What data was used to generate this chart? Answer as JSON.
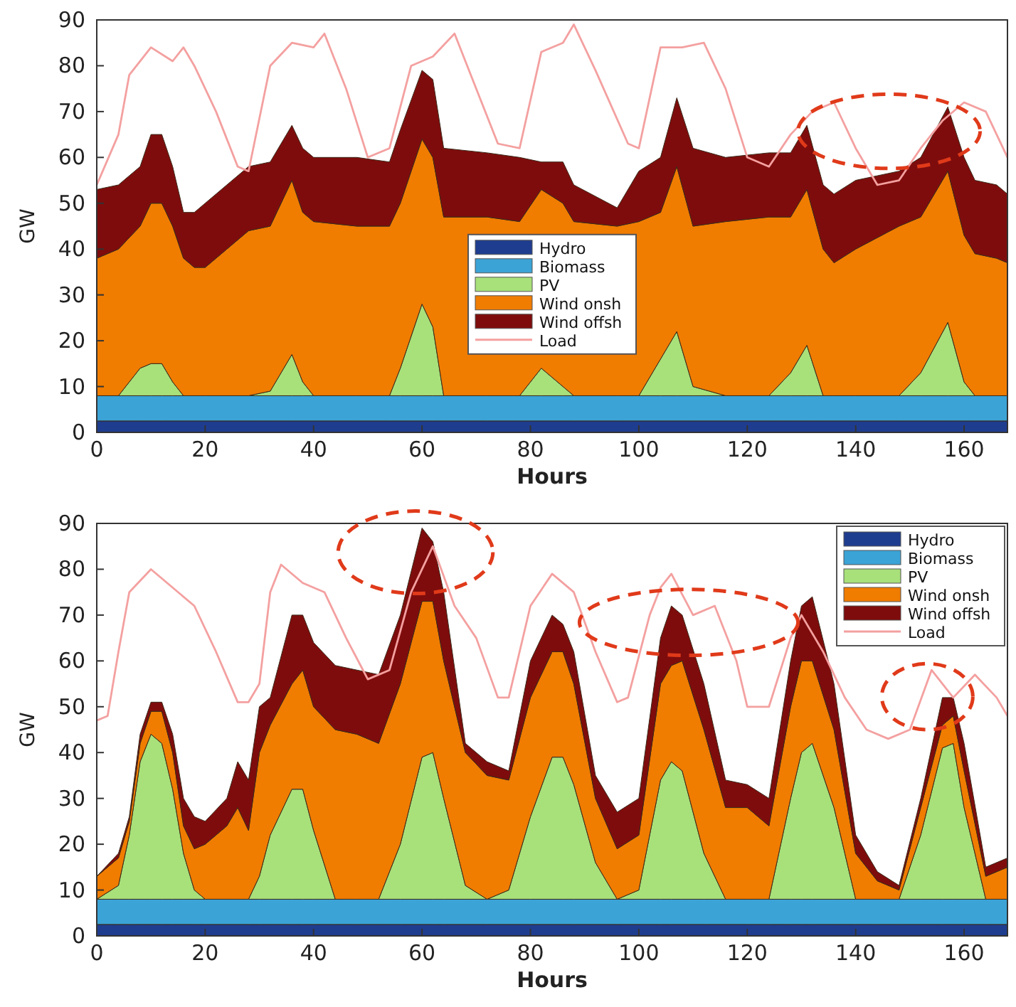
{
  "chart_data": [
    {
      "type": "area",
      "stacked": true,
      "xlabel": "Hours",
      "ylabel": "GW",
      "xlim": [
        0,
        168
      ],
      "ylim": [
        0,
        90
      ],
      "xticks": [
        0,
        20,
        40,
        60,
        80,
        100,
        120,
        140,
        160
      ],
      "yticks": [
        0,
        10,
        20,
        30,
        40,
        50,
        60,
        70,
        80,
        90
      ],
      "grid": false,
      "legend": "bottom",
      "x": [
        0,
        4,
        8,
        10,
        12,
        14,
        16,
        18,
        20,
        24,
        28,
        32,
        36,
        38,
        40,
        48,
        54,
        56,
        60,
        62,
        64,
        72,
        78,
        82,
        86,
        88,
        96,
        100,
        104,
        107,
        110,
        116,
        124,
        128,
        131,
        134,
        136,
        140,
        148,
        152,
        157,
        160,
        162,
        166,
        168
      ],
      "series": [
        {
          "name": "Hydro",
          "color": "#1f3d8f",
          "values": [
            2.5,
            2.5,
            2.5,
            2.5,
            2.5,
            2.5,
            2.5,
            2.5,
            2.5,
            2.5,
            2.5,
            2.5,
            2.5,
            2.5,
            2.5,
            2.5,
            2.5,
            2.5,
            2.5,
            2.5,
            2.5,
            2.5,
            2.5,
            2.5,
            2.5,
            2.5,
            2.5,
            2.5,
            2.5,
            2.5,
            2.5,
            2.5,
            2.5,
            2.5,
            2.5,
            2.5,
            2.5,
            2.5,
            2.5,
            2.5,
            2.5,
            2.5,
            2.5,
            2.5,
            2.5
          ]
        },
        {
          "name": "Biomass",
          "color": "#3ba3d6",
          "values": [
            5.5,
            5.5,
            5.5,
            5.5,
            5.5,
            5.5,
            5.5,
            5.5,
            5.5,
            5.5,
            5.5,
            5.5,
            5.5,
            5.5,
            5.5,
            5.5,
            5.5,
            5.5,
            5.5,
            5.5,
            5.5,
            5.5,
            5.5,
            5.5,
            5.5,
            5.5,
            5.5,
            5.5,
            5.5,
            5.5,
            5.5,
            5.5,
            5.5,
            5.5,
            5.5,
            5.5,
            5.5,
            5.5,
            5.5,
            5.5,
            5.5,
            5.5,
            5.5,
            5.5,
            5.5
          ]
        },
        {
          "name": "PV",
          "color": "#a8e07a",
          "values": [
            0,
            0,
            6,
            7,
            7,
            3,
            0,
            0,
            0,
            0,
            0,
            1,
            9,
            3,
            0,
            0,
            0,
            6,
            20,
            15,
            0,
            0,
            0,
            6,
            2,
            0,
            0,
            0,
            8,
            14,
            2,
            0,
            0,
            5,
            11,
            0,
            0,
            0,
            0,
            5,
            16,
            3,
            0,
            0,
            0
          ]
        },
        {
          "name": "Wind onsh",
          "color": "#f07c00",
          "values": [
            30,
            32,
            31,
            35,
            35,
            34,
            30,
            28,
            28,
            32,
            36,
            36,
            38,
            37,
            38,
            37,
            37,
            36,
            36,
            37,
            39,
            39,
            38,
            39,
            40,
            38,
            37,
            38,
            32,
            36,
            35,
            38,
            39,
            34,
            34,
            32,
            29,
            32,
            37,
            34,
            33,
            32,
            31,
            30,
            29
          ]
        },
        {
          "name": "Wind offsh",
          "color": "#7f0c0c",
          "values": [
            15,
            14,
            13,
            15,
            15,
            13,
            10,
            12,
            14,
            14,
            14,
            14,
            12,
            14,
            14,
            15,
            14,
            16,
            15,
            17,
            15,
            14,
            14,
            6,
            9,
            8,
            4,
            11,
            12,
            15,
            17,
            14,
            14,
            14,
            14,
            14,
            15,
            15,
            12,
            13,
            14,
            17,
            16,
            16,
            15
          ]
        },
        {
          "name": "Load",
          "type": "line",
          "color": "#f4a0a0",
          "x": [
            0,
            4,
            6,
            10,
            14,
            16,
            18,
            22,
            26,
            28,
            32,
            36,
            40,
            42,
            46,
            50,
            54,
            58,
            62,
            66,
            70,
            74,
            78,
            82,
            86,
            88,
            92,
            98,
            100,
            104,
            108,
            112,
            116,
            120,
            124,
            128,
            132,
            136,
            140,
            144,
            148,
            152,
            156,
            160,
            164,
            168
          ],
          "values": [
            54,
            65,
            78,
            84,
            81,
            84,
            80,
            70,
            58,
            57,
            80,
            85,
            84,
            87,
            75,
            60,
            62,
            80,
            82,
            87,
            75,
            63,
            62,
            83,
            85,
            89,
            79,
            63,
            62,
            84,
            84,
            85,
            75,
            60,
            58,
            65,
            70,
            72,
            62,
            54,
            55,
            62,
            68,
            72,
            70,
            60
          ]
        }
      ]
    },
    {
      "type": "area",
      "stacked": true,
      "xlabel": "Hours",
      "ylabel": "GW",
      "xlim": [
        0,
        168
      ],
      "ylim": [
        0,
        90
      ],
      "xticks": [
        0,
        20,
        40,
        60,
        80,
        100,
        120,
        140,
        160
      ],
      "yticks": [
        0,
        10,
        20,
        30,
        40,
        50,
        60,
        70,
        80,
        90
      ],
      "grid": false,
      "legend": "top right",
      "x": [
        0,
        4,
        6,
        8,
        10,
        12,
        14,
        16,
        18,
        20,
        24,
        26,
        28,
        30,
        32,
        36,
        38,
        40,
        44,
        48,
        52,
        56,
        60,
        62,
        64,
        68,
        72,
        76,
        80,
        84,
        86,
        88,
        92,
        96,
        100,
        104,
        106,
        108,
        112,
        116,
        120,
        124,
        128,
        130,
        132,
        136,
        140,
        144,
        148,
        152,
        156,
        158,
        160,
        164,
        168
      ],
      "series": [
        {
          "name": "Hydro",
          "color": "#1f3d8f",
          "values": [
            2.5,
            2.5,
            2.5,
            2.5,
            2.5,
            2.5,
            2.5,
            2.5,
            2.5,
            2.5,
            2.5,
            2.5,
            2.5,
            2.5,
            2.5,
            2.5,
            2.5,
            2.5,
            2.5,
            2.5,
            2.5,
            2.5,
            2.5,
            2.5,
            2.5,
            2.5,
            2.5,
            2.5,
            2.5,
            2.5,
            2.5,
            2.5,
            2.5,
            2.5,
            2.5,
            2.5,
            2.5,
            2.5,
            2.5,
            2.5,
            2.5,
            2.5,
            2.5,
            2.5,
            2.5,
            2.5,
            2.5,
            2.5,
            2.5,
            2.5,
            2.5,
            2.5,
            2.5,
            2.5,
            2.5
          ]
        },
        {
          "name": "Biomass",
          "color": "#3ba3d6",
          "values": [
            5.5,
            5.5,
            5.5,
            5.5,
            5.5,
            5.5,
            5.5,
            5.5,
            5.5,
            5.5,
            5.5,
            5.5,
            5.5,
            5.5,
            5.5,
            5.5,
            5.5,
            5.5,
            5.5,
            5.5,
            5.5,
            5.5,
            5.5,
            5.5,
            5.5,
            5.5,
            5.5,
            5.5,
            5.5,
            5.5,
            5.5,
            5.5,
            5.5,
            5.5,
            5.5,
            5.5,
            5.5,
            5.5,
            5.5,
            5.5,
            5.5,
            5.5,
            5.5,
            5.5,
            5.5,
            5.5,
            5.5,
            5.5,
            5.5,
            5.5,
            5.5,
            5.5,
            5.5,
            5.5,
            5.5
          ]
        },
        {
          "name": "PV",
          "color": "#a8e07a",
          "values": [
            0,
            3,
            14,
            30,
            36,
            34,
            24,
            10,
            2,
            0,
            0,
            0,
            0,
            5,
            14,
            24,
            24,
            15,
            0,
            0,
            0,
            12,
            31,
            32,
            22,
            3,
            0,
            2,
            18,
            31,
            31,
            25,
            8,
            0,
            2,
            26,
            30,
            28,
            10,
            0,
            0,
            0,
            22,
            32,
            34,
            20,
            0,
            0,
            0,
            14,
            33,
            34,
            20,
            0,
            0
          ]
        },
        {
          "name": "Wind onsh",
          "color": "#f07c00",
          "values": [
            5,
            6,
            3,
            4,
            5,
            7,
            8,
            6,
            9,
            12,
            16,
            20,
            15,
            27,
            24,
            23,
            26,
            27,
            37,
            36,
            34,
            35,
            34,
            33,
            30,
            29,
            27,
            24,
            26,
            23,
            23,
            22,
            14,
            11,
            12,
            21,
            21,
            24,
            27,
            20,
            20,
            16,
            20,
            20,
            18,
            17,
            10,
            4,
            2,
            6,
            5,
            6,
            8,
            5,
            7
          ]
        },
        {
          "name": "Wind offsh",
          "color": "#7f0c0c",
          "values": [
            0,
            1,
            1,
            2,
            2,
            2,
            4,
            6,
            7,
            5,
            6,
            10,
            11,
            10,
            6,
            15,
            12,
            14,
            14,
            14,
            15,
            15,
            16,
            13,
            15,
            2,
            3,
            2,
            8,
            8,
            6,
            7,
            5,
            8,
            8,
            10,
            13,
            10,
            10,
            6,
            5,
            6,
            10,
            12,
            14,
            10,
            4,
            2,
            1,
            2,
            6,
            4,
            6,
            2,
            2
          ]
        },
        {
          "name": "Load",
          "type": "line",
          "color": "#f4a0a0",
          "x": [
            0,
            2,
            4,
            6,
            10,
            14,
            18,
            22,
            26,
            28,
            30,
            32,
            34,
            38,
            42,
            46,
            50,
            54,
            58,
            62,
            66,
            70,
            74,
            76,
            80,
            84,
            88,
            92,
            96,
            98,
            102,
            104,
            106,
            110,
            114,
            118,
            120,
            124,
            128,
            130,
            134,
            138,
            142,
            146,
            150,
            154,
            158,
            162,
            166,
            168
          ],
          "values": [
            47,
            48,
            62,
            75,
            80,
            76,
            72,
            62,
            51,
            51,
            55,
            75,
            81,
            77,
            75,
            65,
            56,
            58,
            75,
            85,
            72,
            65,
            52,
            52,
            72,
            79,
            75,
            62,
            51,
            52,
            70,
            76,
            79,
            70,
            72,
            60,
            50,
            50,
            65,
            70,
            62,
            52,
            45,
            43,
            45,
            58,
            52,
            57,
            52,
            48
          ]
        }
      ]
    }
  ]
}
